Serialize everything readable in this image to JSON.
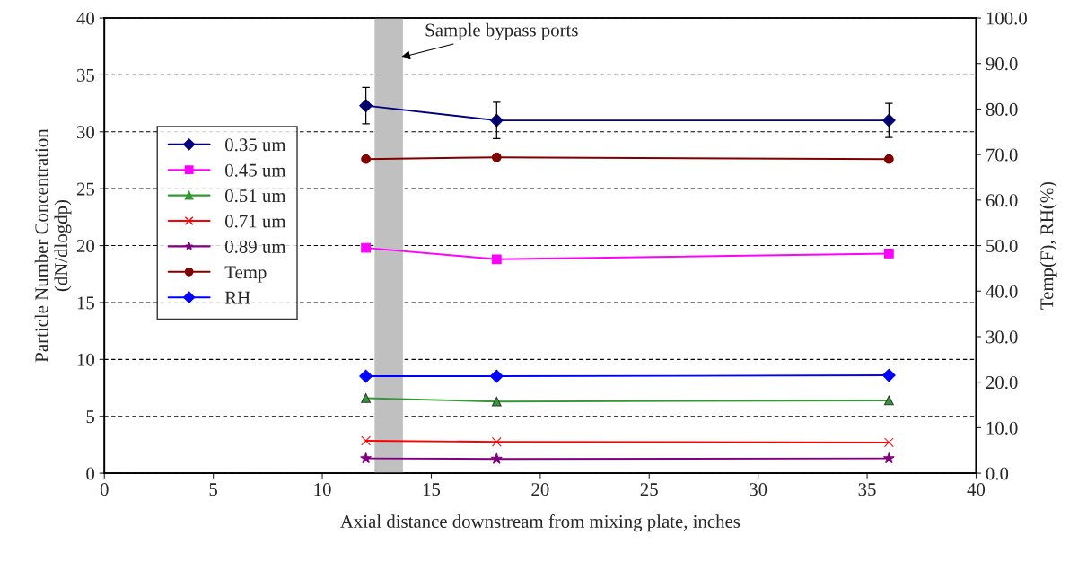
{
  "chart_data": {
    "type": "line",
    "xlabel": "Axial distance downstream from mixing plate, inches",
    "ylabel": "Particle Number Concentration\n(dN/dlogdp)",
    "y2label": "Temp(F), RH(%)",
    "x": [
      12,
      18,
      36
    ],
    "xlim": [
      0,
      40
    ],
    "xticks": [
      0,
      5,
      10,
      15,
      20,
      25,
      30,
      35,
      40
    ],
    "ylim": [
      0,
      40
    ],
    "yticks": [
      0,
      5,
      10,
      15,
      20,
      25,
      30,
      35,
      40
    ],
    "y2lim": [
      0,
      100
    ],
    "y2ticks": [
      {
        "value": 0,
        "label": "0.0"
      },
      {
        "value": 10,
        "label": "10.0"
      },
      {
        "value": 20,
        "label": "20.0"
      },
      {
        "value": 30,
        "label": "30.0"
      },
      {
        "value": 40,
        "label": "40.0"
      },
      {
        "value": 50,
        "label": "50.0"
      },
      {
        "value": 60,
        "label": "60.0"
      },
      {
        "value": 70,
        "label": "70.0"
      },
      {
        "value": 80,
        "label": "80.0"
      },
      {
        "value": 90,
        "label": "90.0"
      },
      {
        "value": 100,
        "label": "100.0"
      }
    ],
    "series": [
      {
        "name": "0.35 um",
        "color": "#000080",
        "marker": "diamond",
        "values": [
          32.3,
          31.0,
          31.0
        ],
        "errors": [
          1.6,
          1.6,
          1.5
        ]
      },
      {
        "name": "0.45 um",
        "color": "#ff00ff",
        "marker": "square",
        "values": [
          19.8,
          18.8,
          19.3
        ]
      },
      {
        "name": "0.51 um",
        "color": "#339933",
        "marker": "triangle",
        "values": [
          6.6,
          6.3,
          6.4
        ]
      },
      {
        "name": "0.71 um",
        "color": "#ff0000",
        "marker": "cross",
        "values": [
          2.85,
          2.75,
          2.7
        ]
      },
      {
        "name": "0.89 um",
        "color": "#800080",
        "marker": "star",
        "values": [
          1.3,
          1.25,
          1.3
        ]
      },
      {
        "name": "Temp",
        "color": "#800000",
        "marker": "circle",
        "axis": "y2",
        "values": [
          69.0,
          69.4,
          69.0
        ]
      },
      {
        "name": "RH",
        "color": "#0000ff",
        "marker": "diamond",
        "axis": "y2",
        "values": [
          21.3,
          21.3,
          21.5
        ]
      }
    ],
    "bands": [
      {
        "axis": "x",
        "from": 12.4,
        "to": 13.7,
        "color": "#c0c0c0"
      }
    ],
    "annotations": [
      {
        "text": "Sample bypass ports",
        "x": 13.5,
        "y": 36.5
      }
    ],
    "grid": "y",
    "legend": "left"
  }
}
